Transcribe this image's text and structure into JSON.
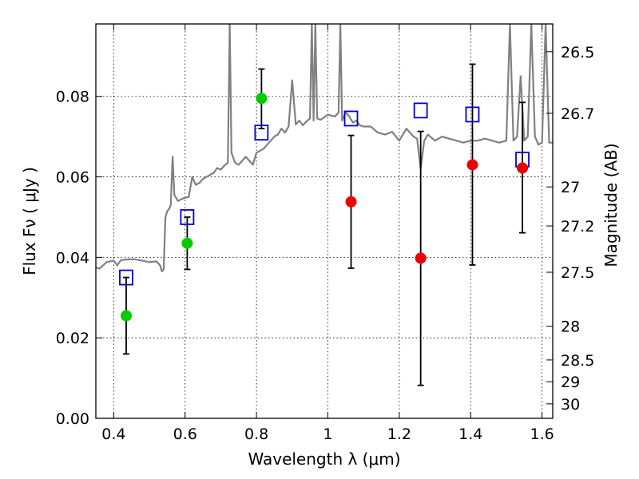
{
  "chart_data": {
    "type": "scatter",
    "xlabel": "Wavelength  λ (μm)",
    "ylabel": "Flux  Fν  ( μJy )",
    "ylabel_right": "Magnitude (AB)",
    "xlim": [
      0.35,
      1.63
    ],
    "ylim": [
      0.0,
      0.098
    ],
    "grid": true,
    "x_ticks": [
      0.4,
      0.6,
      0.8,
      1.0,
      1.2,
      1.4,
      1.6
    ],
    "x_tick_labels": [
      "0.4",
      "0.6",
      "0.8",
      "1",
      "1.2",
      "1.4",
      "1.6"
    ],
    "y_ticks": [
      0.0,
      0.02,
      0.04,
      0.06,
      0.08
    ],
    "y_tick_labels": [
      "0.00",
      "0.02",
      "0.04",
      "0.06",
      "0.08"
    ],
    "right_ticks": [
      {
        "label": "26.5",
        "flux": 0.0911
      },
      {
        "label": "26.7",
        "flux": 0.0758
      },
      {
        "label": "27",
        "flux": 0.0575
      },
      {
        "label": "27.2",
        "flux": 0.0478
      },
      {
        "label": "27.5",
        "flux": 0.0363
      },
      {
        "label": "28",
        "flux": 0.0229
      },
      {
        "label": "28.5",
        "flux": 0.0145
      },
      {
        "label": "29",
        "flux": 0.0091
      },
      {
        "label": "30",
        "flux": 0.0036
      }
    ],
    "series": [
      {
        "kind": "template_spectrum",
        "color": "#808080",
        "x": [
          0.35,
          0.36,
          0.38,
          0.4,
          0.41,
          0.42,
          0.44,
          0.46,
          0.48,
          0.5,
          0.52,
          0.53,
          0.535,
          0.54,
          0.545,
          0.55,
          0.555,
          0.56,
          0.565,
          0.57,
          0.58,
          0.59,
          0.6,
          0.61,
          0.62,
          0.63,
          0.64,
          0.65,
          0.66,
          0.67,
          0.68,
          0.69,
          0.7,
          0.71,
          0.72,
          0.725,
          0.73,
          0.74,
          0.75,
          0.76,
          0.77,
          0.78,
          0.79,
          0.8,
          0.81,
          0.82,
          0.83,
          0.84,
          0.85,
          0.86,
          0.87,
          0.88,
          0.89,
          0.9,
          0.91,
          0.92,
          0.93,
          0.94,
          0.95,
          0.955,
          0.96,
          0.965,
          0.97,
          0.98,
          0.99,
          1.0,
          1.01,
          1.02,
          1.03,
          1.035,
          1.04,
          1.05,
          1.06,
          1.07,
          1.08,
          1.09,
          1.1,
          1.12,
          1.14,
          1.16,
          1.18,
          1.2,
          1.22,
          1.24,
          1.25,
          1.26,
          1.27,
          1.28,
          1.3,
          1.32,
          1.34,
          1.36,
          1.38,
          1.4,
          1.42,
          1.44,
          1.46,
          1.48,
          1.5,
          1.51,
          1.52,
          1.53,
          1.54,
          1.55,
          1.56,
          1.57,
          1.58,
          1.59,
          1.6,
          1.61,
          1.62,
          1.63
        ],
        "y": [
          0.0375,
          0.0372,
          0.0388,
          0.0392,
          0.038,
          0.0393,
          0.0395,
          0.0395,
          0.0392,
          0.0388,
          0.039,
          0.038,
          0.0365,
          0.037,
          0.05,
          0.0515,
          0.052,
          0.053,
          0.065,
          0.0555,
          0.054,
          0.0545,
          0.0548,
          0.055,
          0.06,
          0.058,
          0.0585,
          0.0595,
          0.06,
          0.0605,
          0.061,
          0.0622,
          0.0618,
          0.0628,
          0.0635,
          0.098,
          0.066,
          0.0635,
          0.063,
          0.064,
          0.065,
          0.064,
          0.063,
          0.066,
          0.0665,
          0.067,
          0.068,
          0.069,
          0.07,
          0.0705,
          0.072,
          0.071,
          0.0725,
          0.084,
          0.073,
          0.074,
          0.0728,
          0.0738,
          0.0745,
          0.098,
          0.074,
          0.098,
          0.0745,
          0.0742,
          0.0748,
          0.0755,
          0.0752,
          0.075,
          0.076,
          0.098,
          0.074,
          0.076,
          0.075,
          0.0735,
          0.074,
          0.0728,
          0.0725,
          0.0725,
          0.071,
          0.0705,
          0.0712,
          0.069,
          0.072,
          0.07,
          0.0695,
          0.062,
          0.069,
          0.0705,
          0.069,
          0.07,
          0.0695,
          0.069,
          0.0685,
          0.069,
          0.069,
          0.0695,
          0.069,
          0.0685,
          0.069,
          0.098,
          0.069,
          0.07,
          0.085,
          0.069,
          0.07,
          0.098,
          0.07,
          0.068,
          0.0685,
          0.098,
          0.0685,
          0.0685
        ],
        "units": "μJy"
      },
      {
        "kind": "model_fluxes",
        "marker": "open-square",
        "color": "#0000cc",
        "x": [
          0.435,
          0.606,
          0.814,
          1.065,
          1.26,
          1.405,
          1.545
        ],
        "y": [
          0.035,
          0.05,
          0.071,
          0.0745,
          0.0765,
          0.0755,
          0.0643
        ]
      },
      {
        "kind": "observed_fluxes",
        "marker": "filled-circle",
        "color": "#00cc00",
        "x": [
          0.435,
          0.606,
          0.814
        ],
        "y": [
          0.0255,
          0.0435,
          0.0795
        ],
        "err_low": [
          0.016,
          0.037,
          0.072
        ],
        "err_high": [
          0.035,
          0.05,
          0.0868
        ]
      },
      {
        "kind": "observed_fluxes",
        "marker": "filled-circle",
        "color": "#ee0000",
        "x": [
          1.065,
          1.26,
          1.405,
          1.545
        ],
        "y": [
          0.0538,
          0.0398,
          0.063,
          0.0622
        ],
        "err_low": [
          0.0373,
          0.0082,
          0.0381,
          0.0461
        ],
        "err_high": [
          0.0703,
          0.0713,
          0.088,
          0.0785
        ]
      }
    ]
  }
}
